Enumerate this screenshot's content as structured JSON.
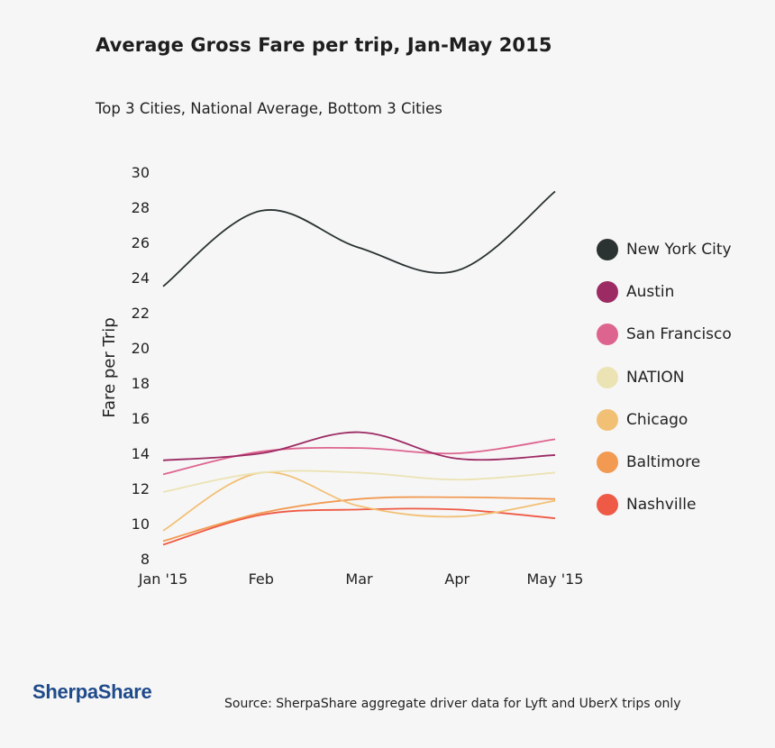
{
  "title": "Average Gross Fare per trip, Jan-May 2015",
  "subtitle": "Top 3 Cities, National Average, Bottom 3 Cities",
  "footer": {
    "logo_text": "SherpaShare",
    "source": "Source: SherpaShare aggregate driver data for Lyft and UberX trips only"
  },
  "chart_data": {
    "type": "line",
    "title": "Average Gross Fare per trip, Jan-May 2015",
    "subtitle": "Top 3 Cities, National Average, Bottom 3 Cities",
    "xlabel": "",
    "ylabel": "Fare per Trip",
    "categories": [
      "Jan '15",
      "Feb",
      "Mar",
      "Apr",
      "May '15"
    ],
    "ylim": [
      8,
      30
    ],
    "yticks": [
      8,
      10,
      12,
      14,
      16,
      18,
      20,
      22,
      24,
      26,
      28,
      30
    ],
    "grid": false,
    "legend_position": "right",
    "series": [
      {
        "name": "New York City",
        "color": "#2a3232",
        "values": [
          23.5,
          27.8,
          25.7,
          24.4,
          28.9
        ]
      },
      {
        "name": "Austin",
        "color": "#9c2a63",
        "values": [
          13.6,
          14.0,
          15.2,
          13.7,
          13.9
        ]
      },
      {
        "name": "San Francisco",
        "color": "#de6490",
        "values": [
          12.8,
          14.1,
          14.3,
          14.0,
          14.8
        ]
      },
      {
        "name": "NATION",
        "color": "#ebe3b4",
        "values": [
          11.8,
          12.9,
          12.9,
          12.5,
          12.9
        ]
      },
      {
        "name": "Chicago",
        "color": "#f2c075",
        "values": [
          9.6,
          12.9,
          11.0,
          10.4,
          11.3
        ]
      },
      {
        "name": "Baltimore",
        "color": "#f29a52",
        "values": [
          9.0,
          10.6,
          11.4,
          11.5,
          11.4
        ]
      },
      {
        "name": "Nashville",
        "color": "#ee5a45",
        "values": [
          8.8,
          10.5,
          10.8,
          10.8,
          10.3
        ]
      }
    ]
  }
}
